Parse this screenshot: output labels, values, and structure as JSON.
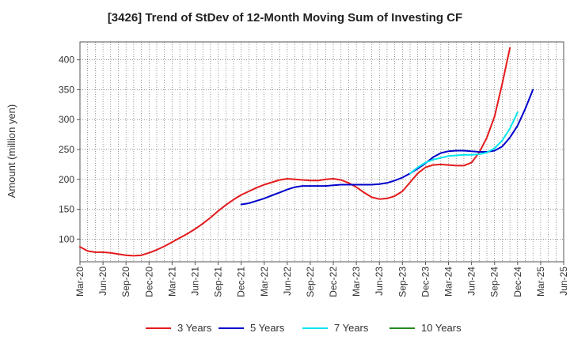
{
  "chart_data": {
    "type": "line",
    "title": "[3426]  Trend of StDev of 12-Month Moving Sum of Investing CF",
    "xlabel": "",
    "ylabel": "Amount (million yen)",
    "ylim": [
      62,
      430
    ],
    "yticks": [
      100,
      150,
      200,
      250,
      300,
      350,
      400
    ],
    "x_ticks": [
      "Mar-20",
      "Jun-20",
      "Sep-20",
      "Dec-20",
      "Mar-21",
      "Jun-21",
      "Sep-21",
      "Dec-21",
      "Mar-22",
      "Jun-22",
      "Sep-22",
      "Dec-22",
      "Mar-23",
      "Jun-23",
      "Sep-23",
      "Dec-23",
      "Mar-24",
      "Jun-24",
      "Sep-24",
      "Dec-24",
      "Mar-25",
      "Jun-25"
    ],
    "grid": true,
    "legend_position": "bottom",
    "series": [
      {
        "name": "3 Years",
        "color": "#e41a1c",
        "start_index": 0,
        "values": [
          87,
          80,
          78,
          78,
          77,
          75,
          73,
          72,
          73,
          77,
          82,
          88,
          95,
          102,
          109,
          117,
          126,
          136,
          147,
          157,
          166,
          174,
          180,
          186,
          191,
          195,
          199,
          201,
          200,
          199,
          198,
          198,
          200,
          201,
          199,
          194,
          187,
          178,
          170,
          167,
          168,
          172,
          180,
          195,
          210,
          220,
          224,
          225,
          224,
          223,
          223,
          228,
          245,
          270,
          305,
          360,
          420
        ]
      },
      {
        "name": "5 Years",
        "color": "#0000cc",
        "start_index": 21,
        "values": [
          158,
          160,
          164,
          168,
          173,
          178,
          183,
          187,
          189,
          189,
          189,
          189,
          190,
          191,
          191,
          191,
          191,
          191,
          192,
          194,
          198,
          203,
          210,
          218,
          227,
          237,
          244,
          247,
          248,
          248,
          247,
          246,
          246,
          248,
          255,
          270,
          290,
          318,
          350
        ]
      },
      {
        "name": "7 Years",
        "color": "#00e5ee",
        "start_index": 43,
        "values": [
          210,
          220,
          228,
          233,
          236,
          239,
          240,
          241,
          241,
          242,
          245,
          252,
          265,
          285,
          312
        ]
      },
      {
        "name": "10 Years",
        "color": "#228b22",
        "start_index": 0,
        "values": []
      }
    ]
  }
}
